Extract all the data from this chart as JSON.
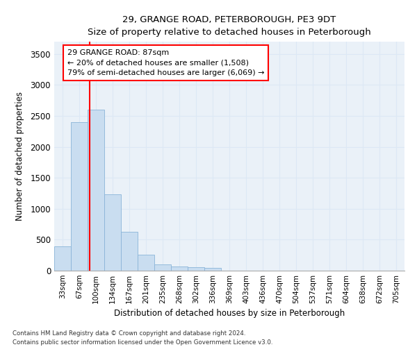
{
  "title": "29, GRANGE ROAD, PETERBOROUGH, PE3 9DT",
  "subtitle": "Size of property relative to detached houses in Peterborough",
  "xlabel": "Distribution of detached houses by size in Peterborough",
  "ylabel": "Number of detached properties",
  "footnote1": "Contains HM Land Registry data © Crown copyright and database right 2024.",
  "footnote2": "Contains public sector information licensed under the Open Government Licence v3.0.",
  "bar_color": "#c9ddf0",
  "bar_edge_color": "#8ab4d8",
  "categories": [
    "33sqm",
    "67sqm",
    "100sqm",
    "134sqm",
    "167sqm",
    "201sqm",
    "235sqm",
    "268sqm",
    "302sqm",
    "336sqm",
    "369sqm",
    "403sqm",
    "436sqm",
    "470sqm",
    "504sqm",
    "537sqm",
    "571sqm",
    "604sqm",
    "638sqm",
    "672sqm",
    "705sqm"
  ],
  "values": [
    395,
    2400,
    2600,
    1230,
    630,
    255,
    100,
    65,
    55,
    45,
    0,
    0,
    0,
    0,
    0,
    0,
    0,
    0,
    0,
    0,
    0
  ],
  "ylim": [
    0,
    3700
  ],
  "yticks": [
    0,
    500,
    1000,
    1500,
    2000,
    2500,
    3000,
    3500
  ],
  "property_label": "29 GRANGE ROAD: 87sqm",
  "annotation_line1": "← 20% of detached houses are smaller (1,508)",
  "annotation_line2": "79% of semi-detached houses are larger (6,069) →",
  "grid_color": "#dce8f5",
  "background_color": "#eaf1f8"
}
